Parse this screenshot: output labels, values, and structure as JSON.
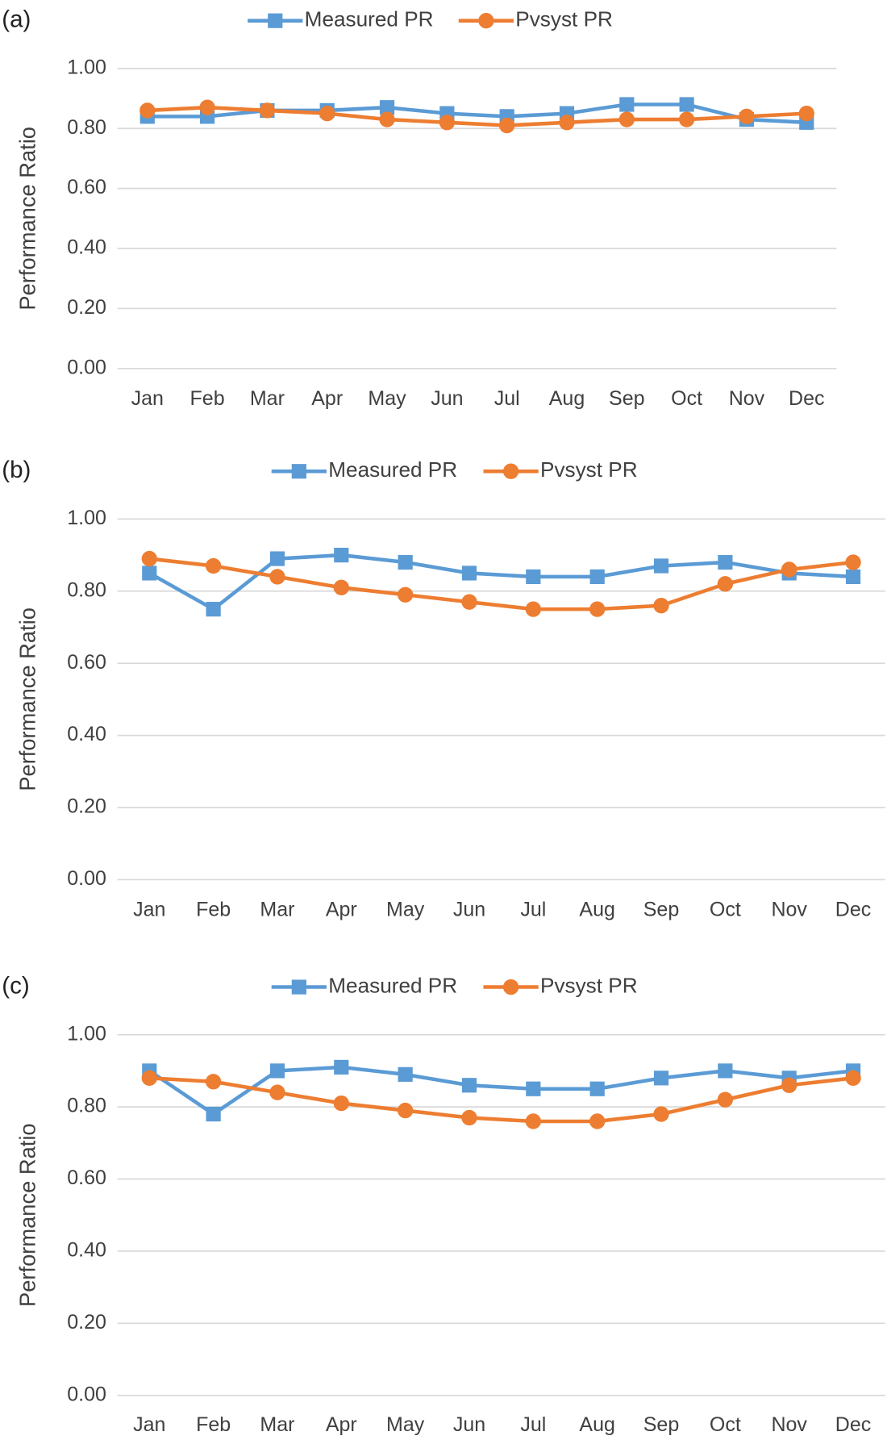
{
  "chart_data": [
    {
      "type": "line",
      "label": "(a)",
      "y_label": "Performance Ratio",
      "categories": [
        "Jan",
        "Feb",
        "Mar",
        "Apr",
        "May",
        "Jun",
        "Jul",
        "Aug",
        "Sep",
        "Oct",
        "Nov",
        "Dec"
      ],
      "series": [
        {
          "name": "Measured PR",
          "color": "#5b9bd5",
          "marker": "square",
          "values": [
            0.84,
            0.84,
            0.86,
            0.86,
            0.87,
            0.85,
            0.84,
            0.85,
            0.88,
            0.88,
            0.83,
            0.82
          ]
        },
        {
          "name": "Pvsyst PR",
          "color": "#ed7d31",
          "marker": "circle",
          "values": [
            0.86,
            0.87,
            0.86,
            0.85,
            0.83,
            0.82,
            0.81,
            0.82,
            0.83,
            0.83,
            0.84,
            0.85
          ]
        }
      ],
      "ylim": [
        0,
        1
      ],
      "yticks": [
        {
          "value": 0,
          "label": "0.00"
        },
        {
          "value": 0.2,
          "label": "0.20"
        },
        {
          "value": 0.4,
          "label": "0.40"
        },
        {
          "value": 0.6,
          "label": "0.60"
        },
        {
          "value": 0.8,
          "label": "0.80"
        },
        {
          "value": 1,
          "label": "1.00"
        }
      ],
      "grid": true,
      "legend": "top"
    },
    {
      "type": "line",
      "label": "(b)",
      "y_label": "Performance Ratio",
      "categories": [
        "Jan",
        "Feb",
        "Mar",
        "Apr",
        "May",
        "Jun",
        "Jul",
        "Aug",
        "Sep",
        "Oct",
        "Nov",
        "Dec"
      ],
      "series": [
        {
          "name": "Measured PR",
          "color": "#5b9bd5",
          "marker": "square",
          "values": [
            0.85,
            0.75,
            0.89,
            0.9,
            0.88,
            0.85,
            0.84,
            0.84,
            0.87,
            0.88,
            0.85,
            0.84
          ]
        },
        {
          "name": "Pvsyst PR",
          "color": "#ed7d31",
          "marker": "circle",
          "values": [
            0.89,
            0.87,
            0.84,
            0.81,
            0.79,
            0.77,
            0.75,
            0.75,
            0.76,
            0.82,
            0.86,
            0.88
          ]
        }
      ],
      "ylim": [
        0,
        1
      ],
      "yticks": [
        {
          "value": 0,
          "label": "0.00"
        },
        {
          "value": 0.2,
          "label": "0.20"
        },
        {
          "value": 0.4,
          "label": "0.40"
        },
        {
          "value": 0.6,
          "label": "0.60"
        },
        {
          "value": 0.8,
          "label": "0.80"
        },
        {
          "value": 1,
          "label": "1.00"
        }
      ],
      "grid": true,
      "legend": "top"
    },
    {
      "type": "line",
      "label": "(c)",
      "y_label": "Performance Ratio",
      "categories": [
        "Jan",
        "Feb",
        "Mar",
        "Apr",
        "May",
        "Jun",
        "Jul",
        "Aug",
        "Sep",
        "Oct",
        "Nov",
        "Dec"
      ],
      "series": [
        {
          "name": "Measured PR",
          "color": "#5b9bd5",
          "marker": "square",
          "values": [
            0.9,
            0.78,
            0.9,
            0.91,
            0.89,
            0.86,
            0.85,
            0.85,
            0.88,
            0.9,
            0.88,
            0.9
          ]
        },
        {
          "name": "Pvsyst PR",
          "color": "#ed7d31",
          "marker": "circle",
          "values": [
            0.88,
            0.87,
            0.84,
            0.81,
            0.79,
            0.77,
            0.76,
            0.76,
            0.78,
            0.82,
            0.86,
            0.88
          ]
        }
      ],
      "ylim": [
        0,
        1
      ],
      "yticks": [
        {
          "value": 0,
          "label": "0.00"
        },
        {
          "value": 0.2,
          "label": "0.20"
        },
        {
          "value": 0.4,
          "label": "0.40"
        },
        {
          "value": 0.6,
          "label": "0.60"
        },
        {
          "value": 0.8,
          "label": "0.80"
        },
        {
          "value": 1,
          "label": "1.00"
        }
      ],
      "grid": true,
      "legend": "top"
    }
  ]
}
